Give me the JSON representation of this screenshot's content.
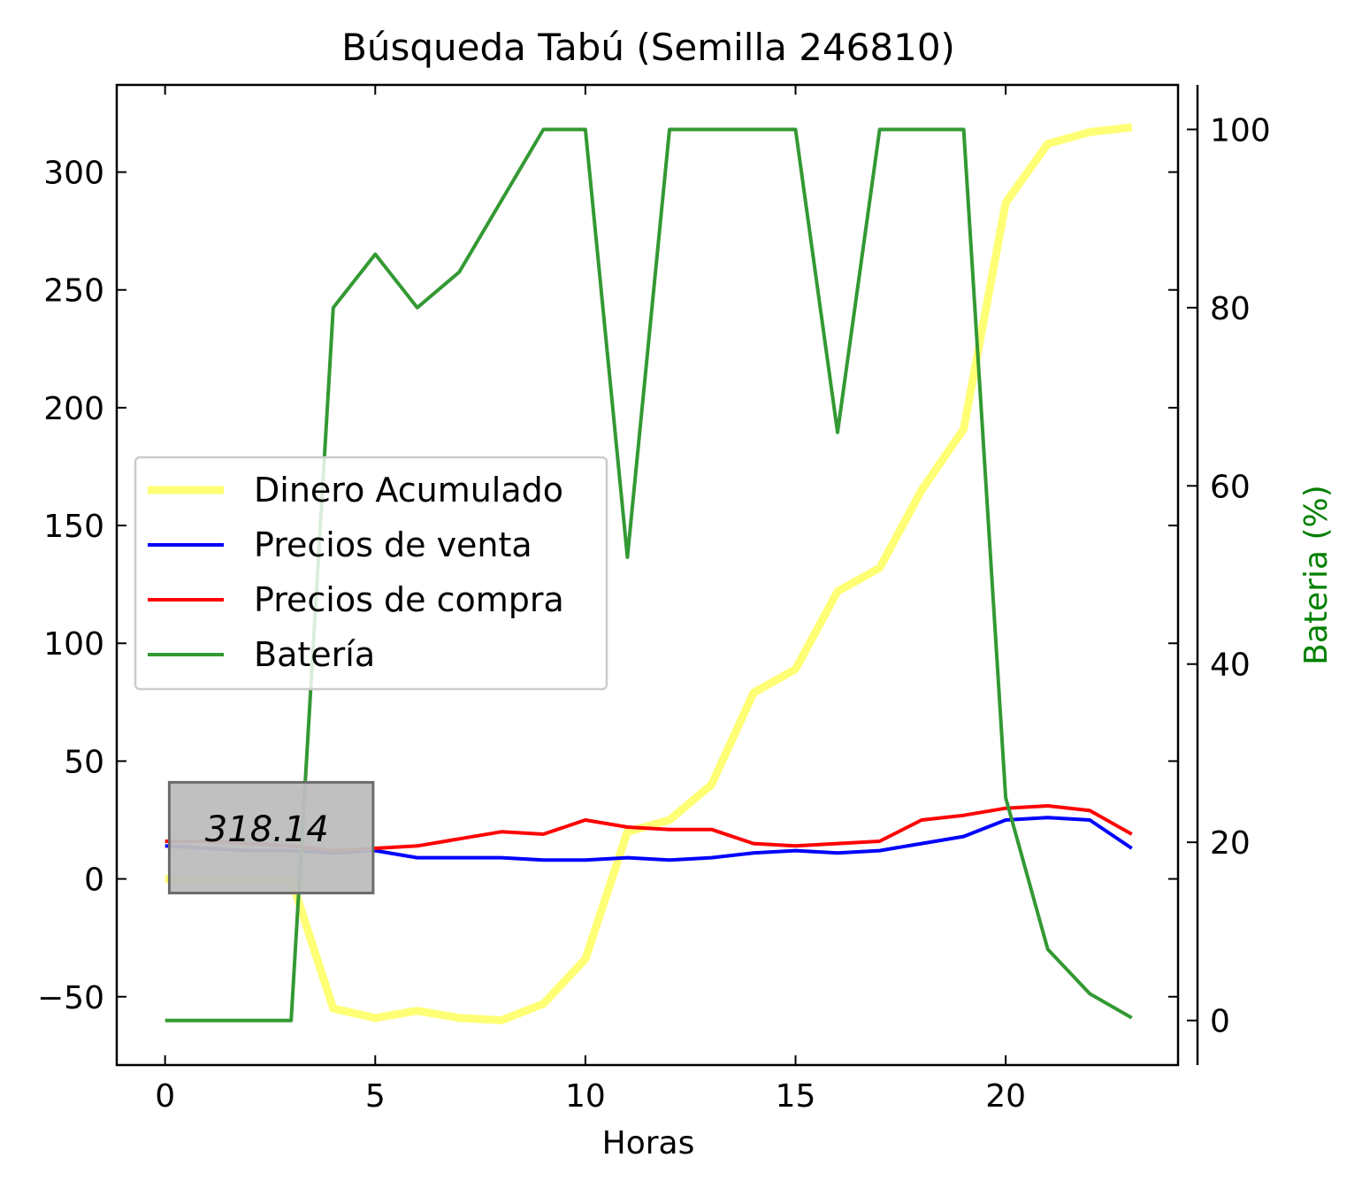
{
  "chart_data": {
    "type": "line",
    "title": "Búsqueda Tabú (Semilla 246810)",
    "xlabel": "Horas",
    "ylabel": "",
    "y2label": "Bateria (%)",
    "xlim": [
      -1.15,
      24.1
    ],
    "ylim": [
      -79,
      337
    ],
    "y2lim": [
      -5,
      105
    ],
    "xticks": [
      0,
      5,
      10,
      15,
      20
    ],
    "yticks": [
      -50,
      0,
      50,
      100,
      150,
      200,
      250,
      300
    ],
    "yticklabels": [
      "−50",
      "0",
      "50",
      "100",
      "150",
      "200",
      "250",
      "300"
    ],
    "y2ticks": [
      0,
      20,
      40,
      60,
      80,
      100
    ],
    "grid": false,
    "legend_position": "center-left",
    "x": [
      0,
      1,
      2,
      3,
      4,
      5,
      6,
      7,
      8,
      9,
      10,
      11,
      12,
      13,
      14,
      15,
      16,
      17,
      18,
      19,
      20,
      21,
      22,
      23
    ],
    "series": [
      {
        "name": "Dinero Acumulado",
        "axis": "left",
        "color": "#ffff66",
        "values": [
          0,
          0,
          0,
          0,
          -55,
          -59,
          -56,
          -59,
          -60,
          -53,
          -34,
          20,
          25,
          40,
          79,
          89,
          122,
          132,
          165,
          191,
          287,
          312,
          317,
          319
        ]
      },
      {
        "name": "Precios de venta",
        "axis": "left",
        "color": "#0000ff",
        "values": [
          14,
          13,
          12,
          12,
          11,
          12,
          9,
          9,
          9,
          8,
          8,
          9,
          8,
          9,
          11,
          12,
          11,
          12,
          15,
          18,
          25,
          26,
          25,
          13
        ]
      },
      {
        "name": "Precios de compra",
        "axis": "left",
        "color": "#ff0000",
        "values": [
          16,
          16,
          15,
          14,
          12,
          13,
          14,
          17,
          20,
          19,
          25,
          22,
          21,
          21,
          15,
          14,
          15,
          16,
          25,
          27,
          30,
          31,
          29,
          19
        ]
      },
      {
        "name": "Batería",
        "axis": "right",
        "color": "#339933",
        "values": [
          0,
          0,
          0,
          0,
          80,
          86,
          80,
          84,
          92,
          100,
          100,
          52,
          100,
          100,
          100,
          100,
          66,
          100,
          100,
          100,
          25,
          8,
          3,
          0.3
        ]
      }
    ],
    "annotation": {
      "text": "318.14",
      "box_x": [
        0.1,
        4.95
      ],
      "box_y": [
        -6,
        41
      ],
      "text_x": 0.95,
      "text_y": 16,
      "box_color": "#bdbdbd",
      "border_color": "#6b6b6b"
    }
  }
}
